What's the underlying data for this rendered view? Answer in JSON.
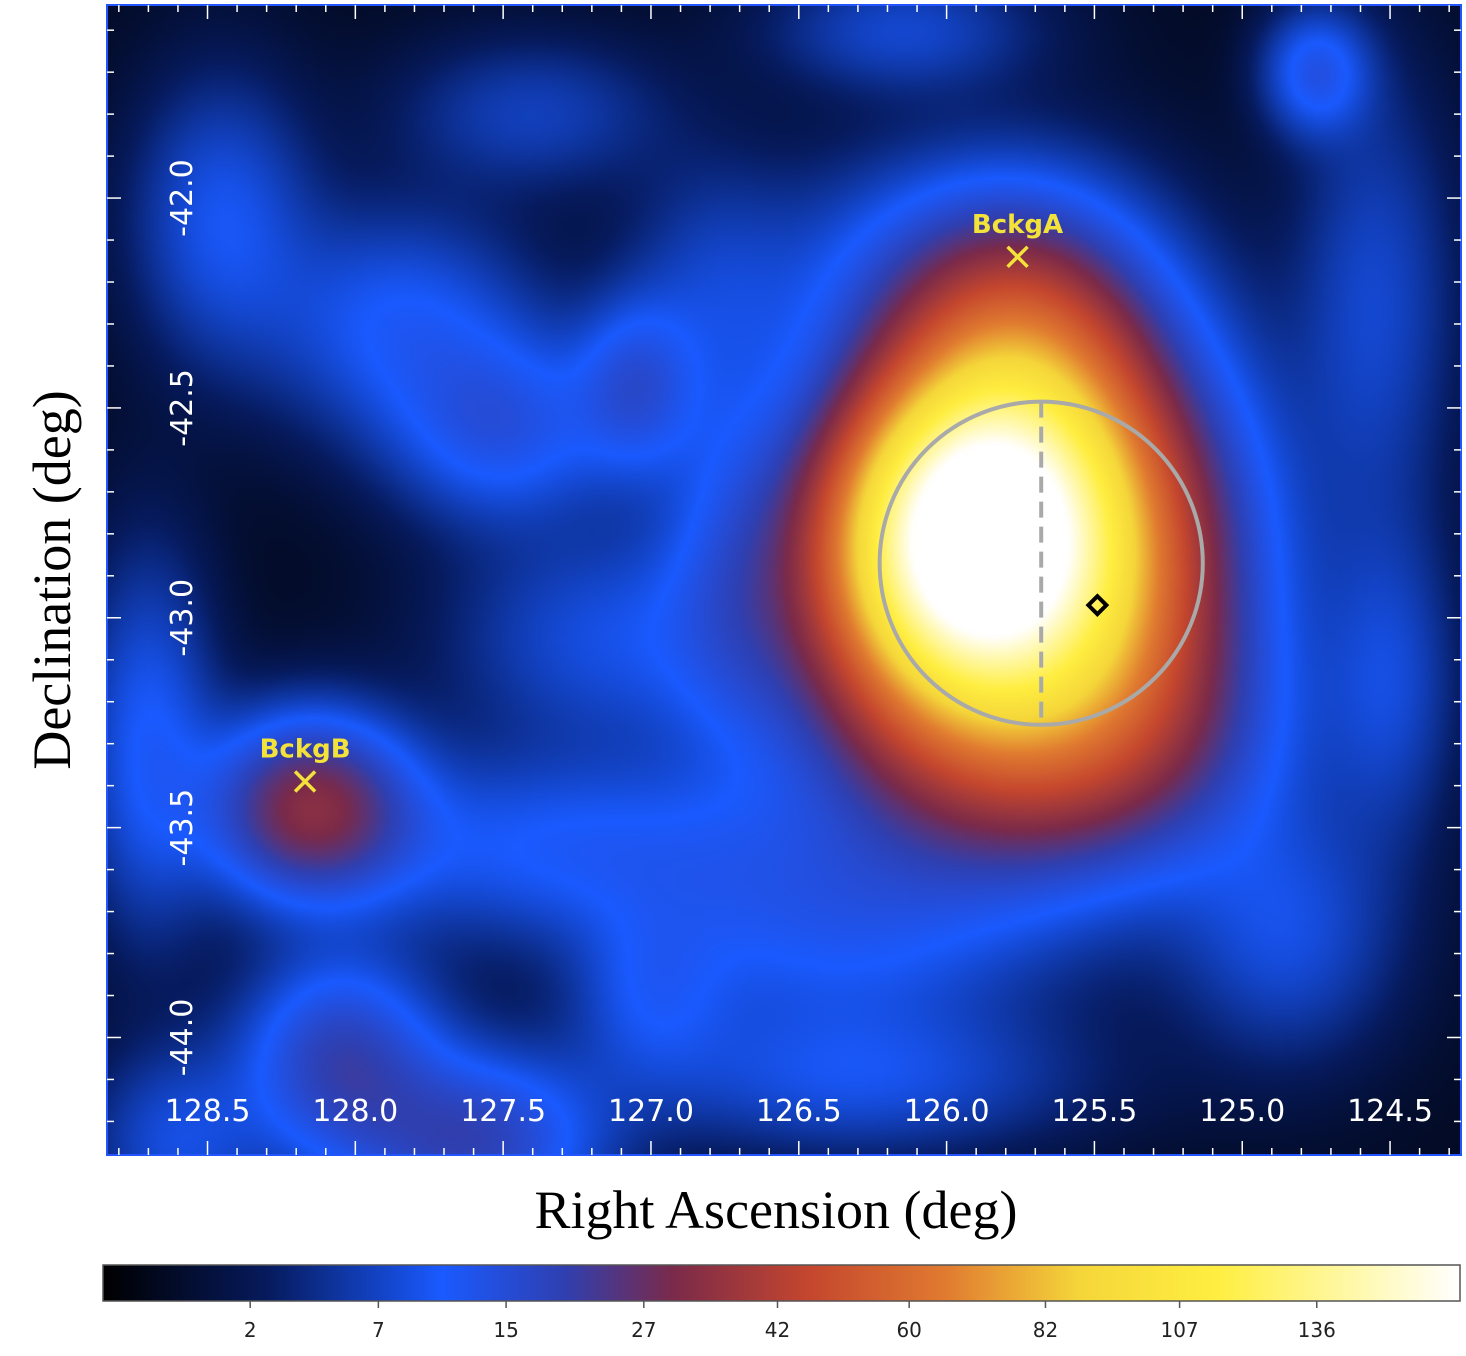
{
  "chart_data": {
    "type": "heatmap",
    "title": "",
    "xlabel": "Right Ascension (deg)",
    "ylabel": "Declination (deg)",
    "x_ticks": [
      "128.5",
      "128.0",
      "127.5",
      "127.0",
      "126.5",
      "126.0",
      "125.5",
      "125.0",
      "124.5"
    ],
    "x_tick_values": [
      128.5,
      128.0,
      127.5,
      127.0,
      126.5,
      126.0,
      125.5,
      125.0,
      124.5
    ],
    "y_ticks": [
      "-42.0",
      "-42.5",
      "-43.0",
      "-43.5",
      "-44.0"
    ],
    "y_tick_values": [
      -42.0,
      -42.5,
      -43.0,
      -43.5,
      -44.0
    ],
    "xlim": [
      128.84,
      124.26
    ],
    "ylim": [
      -44.28,
      -41.54
    ],
    "markers": [
      {
        "label": "BckgA",
        "ra": 125.76,
        "dec": -42.14,
        "symbol": "x",
        "color": "#f2e23a"
      },
      {
        "label": "BckgB",
        "ra": 128.17,
        "dec": -43.39,
        "symbol": "x",
        "color": "#f2e23a"
      },
      {
        "label": "",
        "ra": 125.49,
        "dec": -42.97,
        "symbol": "diamond",
        "color": "#000000"
      }
    ],
    "circle": {
      "ra": 125.68,
      "dec": -42.87,
      "radius_deg": 0.385,
      "color": "#a9a9a9"
    },
    "divider_ra": 125.68,
    "blobs": [
      {
        "ra": 125.91,
        "dec": -42.8,
        "amp": 150,
        "sra": 0.28,
        "sdec": 0.22
      },
      {
        "ra": 125.68,
        "dec": -42.85,
        "amp": 80,
        "sra": 0.38,
        "sdec": 0.34
      },
      {
        "ra": 125.75,
        "dec": -42.4,
        "amp": 30,
        "sra": 0.26,
        "sdec": 0.22
      },
      {
        "ra": 125.9,
        "dec": -43.15,
        "amp": 28,
        "sra": 0.42,
        "sdec": 0.28
      },
      {
        "ra": 125.35,
        "dec": -43.3,
        "amp": 12,
        "sra": 0.35,
        "sdec": 0.2
      },
      {
        "ra": 128.15,
        "dec": -43.45,
        "amp": 30,
        "sra": 0.22,
        "sdec": 0.14
      },
      {
        "ra": 128.05,
        "dec": -44.05,
        "amp": 18,
        "sra": 0.22,
        "sdec": 0.16
      },
      {
        "ra": 127.6,
        "dec": -44.25,
        "amp": 18,
        "sra": 0.28,
        "sdec": 0.14
      },
      {
        "ra": 127.85,
        "dec": -42.3,
        "amp": 10,
        "sra": 0.3,
        "sdec": 0.18
      },
      {
        "ra": 128.45,
        "dec": -42.05,
        "amp": 9,
        "sra": 0.2,
        "sdec": 0.22
      },
      {
        "ra": 127.5,
        "dec": -42.55,
        "amp": 12,
        "sra": 0.25,
        "sdec": 0.15
      },
      {
        "ra": 127.05,
        "dec": -42.45,
        "amp": 12,
        "sra": 0.14,
        "sdec": 0.14
      },
      {
        "ra": 126.7,
        "dec": -42.85,
        "amp": 9,
        "sra": 0.18,
        "sdec": 0.3
      },
      {
        "ra": 127.15,
        "dec": -43.05,
        "amp": 8,
        "sra": 0.35,
        "sdec": 0.18
      },
      {
        "ra": 127.3,
        "dec": -43.55,
        "amp": 10,
        "sra": 0.55,
        "sdec": 0.15
      },
      {
        "ra": 126.4,
        "dec": -43.75,
        "amp": 9,
        "sra": 0.45,
        "sdec": 0.18
      },
      {
        "ra": 127.0,
        "dec": -43.9,
        "amp": 7,
        "sra": 0.18,
        "sdec": 0.14
      },
      {
        "ra": 126.3,
        "dec": -44.1,
        "amp": 8,
        "sra": 0.5,
        "sdec": 0.12
      },
      {
        "ra": 124.85,
        "dec": -43.75,
        "amp": 8,
        "sra": 0.25,
        "sdec": 0.2
      },
      {
        "ra": 124.55,
        "dec": -42.25,
        "amp": 7,
        "sra": 0.18,
        "sdec": 0.35
      },
      {
        "ra": 124.5,
        "dec": -43.15,
        "amp": 7,
        "sra": 0.15,
        "sdec": 0.25
      },
      {
        "ra": 124.75,
        "dec": -41.7,
        "amp": 12,
        "sra": 0.12,
        "sdec": 0.1
      },
      {
        "ra": 126.0,
        "dec": -42.2,
        "amp": 10,
        "sra": 0.4,
        "sdec": 0.2
      },
      {
        "ra": 126.15,
        "dec": -41.6,
        "amp": 7,
        "sra": 0.3,
        "sdec": 0.1
      },
      {
        "ra": 128.7,
        "dec": -43.3,
        "amp": 10,
        "sra": 0.15,
        "sdec": 0.3
      },
      {
        "ra": 128.6,
        "dec": -44.25,
        "amp": 8,
        "sra": 0.2,
        "sdec": 0.15
      },
      {
        "ra": 126.8,
        "dec": -42.2,
        "amp": 5,
        "sra": 0.2,
        "sdec": 0.2
      },
      {
        "ra": 127.4,
        "dec": -41.8,
        "amp": 6,
        "sra": 0.3,
        "sdec": 0.12
      }
    ],
    "colorbar": {
      "tick_labels": [
        "2",
        "7",
        "15",
        "27",
        "42",
        "60",
        "82",
        "107",
        "136"
      ],
      "tick_values": [
        2,
        7,
        15,
        27,
        42,
        60,
        82,
        107,
        136
      ],
      "max": 170,
      "scale": "sqrt",
      "colormap_stops": [
        {
          "v": 0.0,
          "color": "#000000"
        },
        {
          "v": 0.12,
          "color": "#061a5c"
        },
        {
          "v": 0.25,
          "color": "#1a5aff"
        },
        {
          "v": 0.34,
          "color": "#2f3fb0"
        },
        {
          "v": 0.42,
          "color": "#7a2a4a"
        },
        {
          "v": 0.52,
          "color": "#c4462e"
        },
        {
          "v": 0.62,
          "color": "#e07a30"
        },
        {
          "v": 0.72,
          "color": "#f5d63a"
        },
        {
          "v": 0.82,
          "color": "#ffee40"
        },
        {
          "v": 0.92,
          "color": "#fff8a8"
        },
        {
          "v": 1.0,
          "color": "#ffffff"
        }
      ]
    }
  }
}
